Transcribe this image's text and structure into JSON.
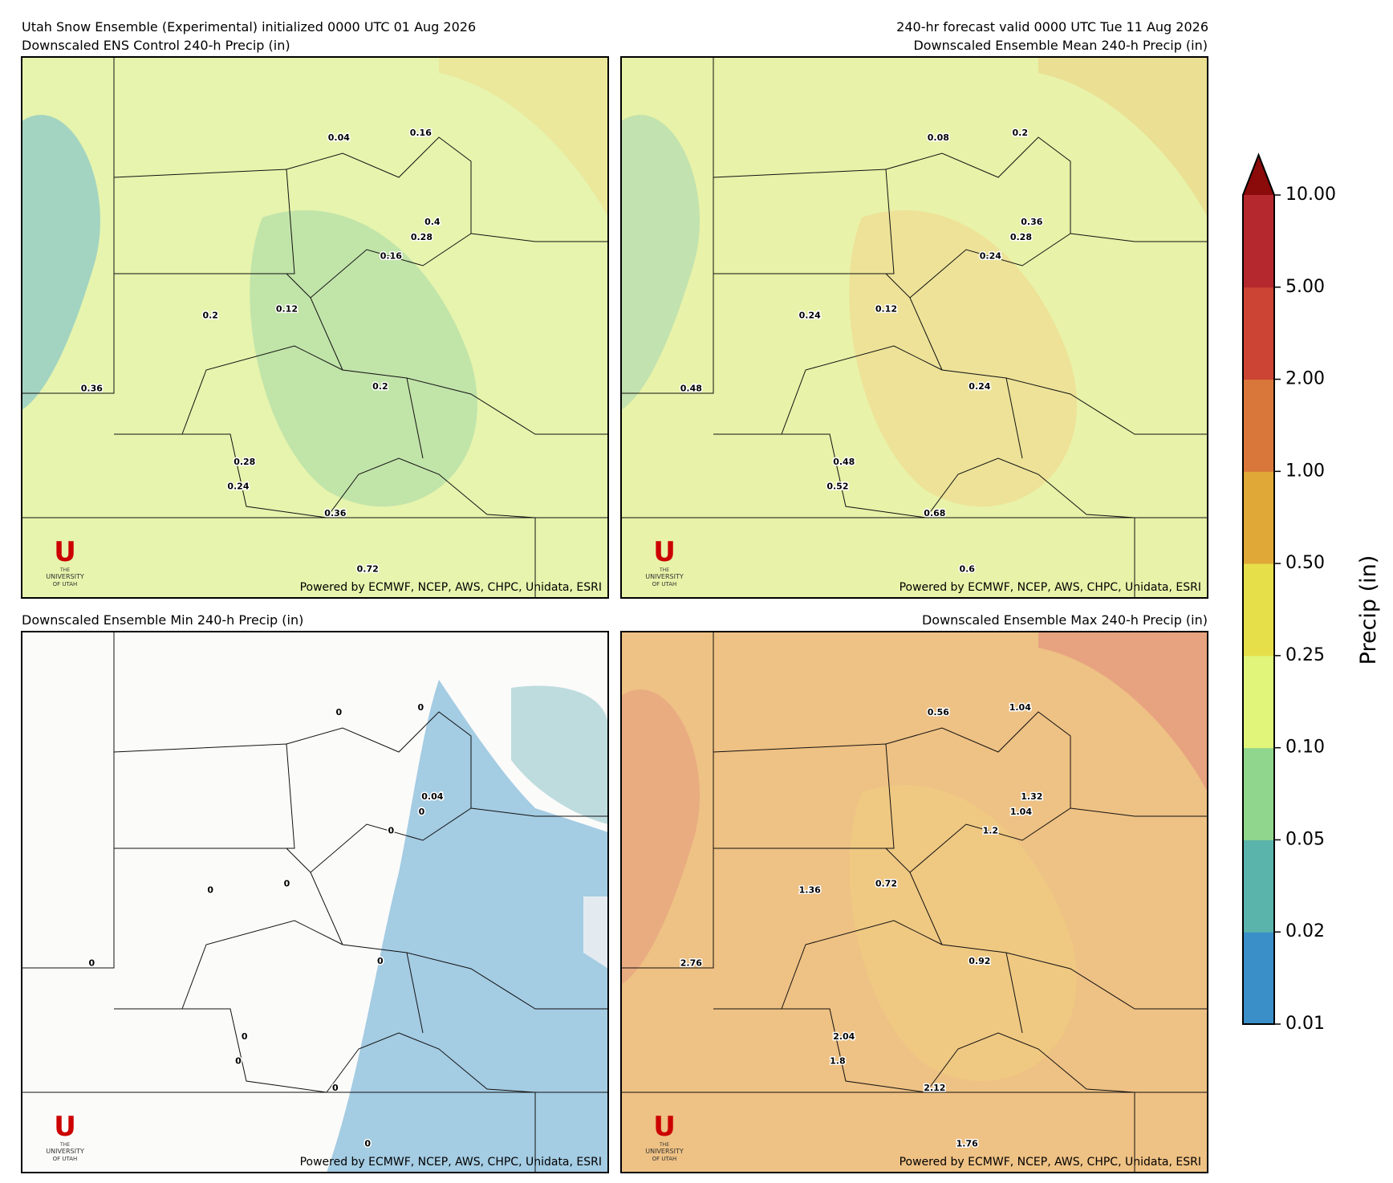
{
  "header": {
    "init": "Utah Snow Ensemble (Experimental) initialized 0000 UTC 01 Aug 2026",
    "valid": "240-hr forecast valid 0000 UTC Tue 11 Aug 2026"
  },
  "panels": [
    {
      "title": "Downscaled ENS Control 240-h Precip (in)",
      "points": [
        0.04,
        0.16,
        0.4,
        0.28,
        0.16,
        0.2,
        0.12,
        0.36,
        0.2,
        0.28,
        0.24,
        0.36,
        0.72
      ]
    },
    {
      "title": "Downscaled Ensemble Mean 240-h Precip (in)",
      "points": [
        0.08,
        0.2,
        0.36,
        0.28,
        0.24,
        0.24,
        0.12,
        0.48,
        0.24,
        0.48,
        0.52,
        0.68,
        0.6
      ]
    },
    {
      "title": "Downscaled Ensemble Min 240-h Precip (in)",
      "points": [
        0,
        0,
        0.04,
        0,
        0,
        0,
        0,
        0,
        0,
        0,
        0,
        0,
        0
      ]
    },
    {
      "title": "Downscaled Ensemble Max 240-h Precip (in)",
      "points": [
        0.56,
        1.04,
        1.32,
        1.04,
        1.2,
        1.36,
        0.72,
        2.76,
        0.92,
        2.04,
        1.8,
        2.12,
        1.76
      ]
    }
  ],
  "footer": "Powered by ECMWF, NCEP, AWS, CHPC, Unidata, ESRI",
  "logo": {
    "letter": "U",
    "line1": "THE",
    "line2": "UNIVERSITY",
    "line3": "OF UTAH"
  },
  "colorbar": {
    "label": "Precip (in)",
    "ticks": [
      {
        "value": 0.01,
        "label": "0.01"
      },
      {
        "value": 0.02,
        "label": "0.02"
      },
      {
        "value": 0.05,
        "label": "0.05"
      },
      {
        "value": 0.1,
        "label": "0.10"
      },
      {
        "value": 0.25,
        "label": "0.25"
      },
      {
        "value": 0.5,
        "label": "0.50"
      },
      {
        "value": 1,
        "label": "1.00"
      },
      {
        "value": 2,
        "label": "2.00"
      },
      {
        "value": 5,
        "label": "5.00"
      },
      {
        "value": 10,
        "label": "10.00"
      }
    ],
    "colors": [
      "#3a8fc8",
      "#5ab4ac",
      "#90d68c",
      "#e0f57a",
      "#e6df4a",
      "#e0a837",
      "#d9773a",
      "#cc4434",
      "#b5292e"
    ],
    "extend_color": "#8b0a0a"
  }
}
